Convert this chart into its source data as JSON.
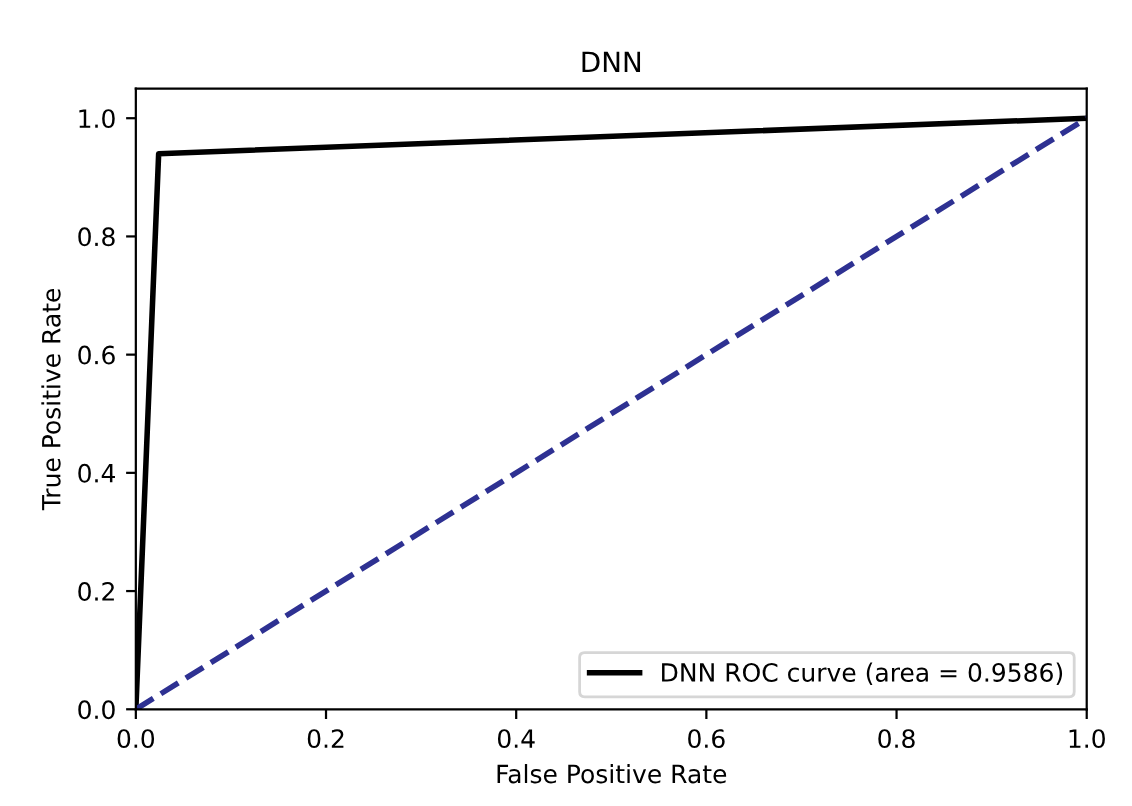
{
  "chart_data": {
    "type": "line",
    "title": "DNN",
    "xlabel": "False Positive Rate",
    "ylabel": "True Positive Rate",
    "xlim": [
      0,
      1.0
    ],
    "ylim": [
      0,
      1.05
    ],
    "xticks": [
      {
        "value": 0,
        "label": "0.0"
      },
      {
        "value": 0.2,
        "label": "0.2"
      },
      {
        "value": 0.4,
        "label": "0.4"
      },
      {
        "value": 0.6,
        "label": "0.6"
      },
      {
        "value": 0.8,
        "label": "0.8"
      },
      {
        "value": 1.0,
        "label": "1.0"
      }
    ],
    "yticks": [
      {
        "value": 0,
        "label": "0.0"
      },
      {
        "value": 0.2,
        "label": "0.2"
      },
      {
        "value": 0.4,
        "label": "0.4"
      },
      {
        "value": 0.6,
        "label": "0.6"
      },
      {
        "value": 0.8,
        "label": "0.8"
      },
      {
        "value": 1.0,
        "label": "1.0"
      }
    ],
    "series": [
      {
        "name": "DNN ROC curve (area = 0.9586)",
        "color": "#000000",
        "x": [
          0,
          0.024,
          1.0
        ],
        "values": [
          0,
          0.94,
          1.0
        ],
        "line_style": "solid"
      },
      {
        "color": "#2e3192",
        "x": [
          0,
          1.0
        ],
        "values": [
          0,
          1.0
        ],
        "line_style": "dashed"
      }
    ],
    "legend": "bottom right",
    "grid": false
  }
}
